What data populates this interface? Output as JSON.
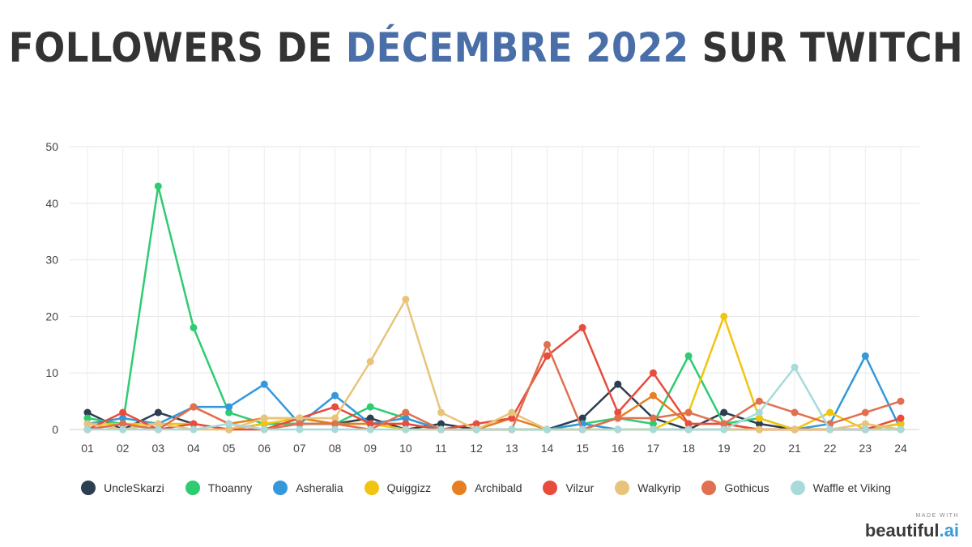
{
  "title": {
    "prefix": "FOLLOWERS DE ",
    "highlight": "DÉCEMBRE 2022",
    "suffix": " SUR TWITCH"
  },
  "chart_data": {
    "type": "line",
    "title": "FOLLOWERS DE DÉCEMBRE 2022 SUR TWITCH",
    "xlabel": "",
    "ylabel": "",
    "ylim": [
      0,
      50
    ],
    "yticks": [
      "0",
      "10",
      "20",
      "30",
      "40",
      "50"
    ],
    "grid": true,
    "legend_position": "bottom",
    "categories": [
      "01",
      "02",
      "03",
      "04",
      "05",
      "06",
      "07",
      "08",
      "09",
      "10",
      "11",
      "12",
      "13",
      "14",
      "15",
      "16",
      "17",
      "18",
      "19",
      "20",
      "21",
      "22",
      "23",
      "24"
    ],
    "series": [
      {
        "name": "UncleSkarzi",
        "color": "#2c3e50",
        "values": [
          3,
          0,
          3,
          1,
          0,
          1,
          1,
          1,
          2,
          0,
          1,
          0,
          0,
          0,
          2,
          8,
          2,
          0,
          3,
          1,
          0,
          0,
          0,
          1
        ]
      },
      {
        "name": "Thoanny",
        "color": "#2ecc71",
        "values": [
          2,
          1,
          43,
          18,
          3,
          1,
          1,
          1,
          4,
          2,
          0,
          0,
          0,
          0,
          1,
          2,
          1,
          13,
          1,
          2,
          0,
          0,
          0,
          1
        ]
      },
      {
        "name": "Asheralia",
        "color": "#3498db",
        "values": [
          1,
          2,
          1,
          4,
          4,
          8,
          1,
          6,
          1,
          2,
          0,
          0,
          0,
          0,
          1,
          0,
          0,
          0,
          0,
          0,
          0,
          1,
          13,
          0
        ]
      },
      {
        "name": "Quiggizz",
        "color": "#f1c40f",
        "values": [
          1,
          1,
          1,
          1,
          0,
          1,
          2,
          1,
          1,
          0,
          0,
          0,
          0,
          0,
          0,
          0,
          0,
          3,
          20,
          2,
          0,
          3,
          0,
          1
        ]
      },
      {
        "name": "Archibald",
        "color": "#e67e22",
        "values": [
          0,
          1,
          0,
          4,
          1,
          2,
          2,
          1,
          1,
          1,
          0,
          0,
          2,
          0,
          0,
          2,
          6,
          1,
          1,
          0,
          0,
          0,
          0,
          0
        ]
      },
      {
        "name": "Vilzur",
        "color": "#e74c3c",
        "values": [
          0,
          3,
          0,
          1,
          0,
          0,
          2,
          4,
          1,
          1,
          0,
          1,
          2,
          13,
          18,
          3,
          10,
          1,
          1,
          0,
          0,
          0,
          0,
          2
        ]
      },
      {
        "name": "Walkyrip",
        "color": "#e8c47a",
        "values": [
          1,
          0,
          1,
          0,
          0,
          2,
          2,
          2,
          12,
          23,
          3,
          0,
          3,
          0,
          0,
          0,
          0,
          0,
          0,
          0,
          0,
          0,
          1,
          0
        ]
      },
      {
        "name": "Gothicus",
        "color": "#e07050",
        "values": [
          0,
          1,
          0,
          4,
          1,
          0,
          1,
          1,
          0,
          3,
          0,
          0,
          0,
          15,
          0,
          2,
          2,
          3,
          1,
          5,
          3,
          1,
          3,
          5
        ]
      },
      {
        "name": "Waffle et Viking",
        "color": "#a9dada",
        "values": [
          0,
          0,
          0,
          0,
          1,
          0,
          0,
          0,
          0,
          0,
          0,
          0,
          0,
          0,
          0,
          0,
          0,
          0,
          0,
          3,
          11,
          0,
          0,
          0
        ]
      }
    ]
  },
  "brand": {
    "made_with": "MADE WITH",
    "name": "beautiful",
    "tld": ".ai"
  }
}
